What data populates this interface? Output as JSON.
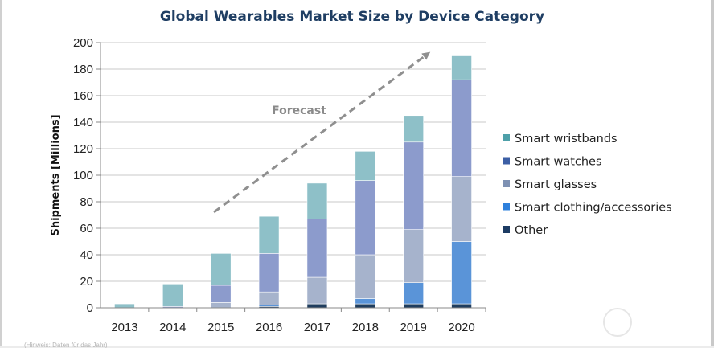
{
  "chart_data": {
    "type": "bar",
    "stacked": true,
    "title": "Global Wearables Market Size by Device Category",
    "xlabel": "",
    "ylabel": "Shipments [Millions]",
    "ylim": [
      0,
      200
    ],
    "yticks": [
      0,
      20,
      40,
      60,
      80,
      100,
      120,
      140,
      160,
      180,
      200
    ],
    "grid": true,
    "legend_position": "right",
    "categories": [
      "2013",
      "2014",
      "2015",
      "2016",
      "2017",
      "2018",
      "2019",
      "2020"
    ],
    "forecast_start": "2015",
    "series": [
      {
        "name": "Other",
        "color": "#1f3d5e",
        "values": [
          0,
          0,
          0,
          1,
          3,
          3,
          3,
          3
        ]
      },
      {
        "name": "Smart clothing/accessories",
        "color": "#5a94d8",
        "values": [
          0,
          0,
          0,
          1,
          0,
          4,
          16,
          47
        ]
      },
      {
        "name": "Smart glasses",
        "color": "#a6b3cc",
        "values": [
          0,
          0,
          4,
          10,
          20,
          33,
          40,
          49
        ]
      },
      {
        "name": "Smart watches",
        "color": "#8c9bcc",
        "values": [
          0,
          1,
          13,
          29,
          44,
          56,
          66,
          73
        ]
      },
      {
        "name": "Smart wristbands",
        "color": "#8ec0c8",
        "values": [
          3,
          17,
          24,
          28,
          27,
          22,
          20,
          18
        ]
      }
    ],
    "annotations": [
      {
        "text": "Forecast"
      }
    ]
  },
  "legend": [
    {
      "label": "Smart wristbands",
      "color": "#4ea0a9"
    },
    {
      "label": "Smart watches",
      "color": "#3c5fa5"
    },
    {
      "label": "Smart glasses",
      "color": "#7e91b3"
    },
    {
      "label": "Smart clothing/accessories",
      "color": "#2e80dc"
    },
    {
      "label": "Other",
      "color": "#1c3b63"
    }
  ],
  "source_note": "(Hinweis: Daten für das Jahr)"
}
